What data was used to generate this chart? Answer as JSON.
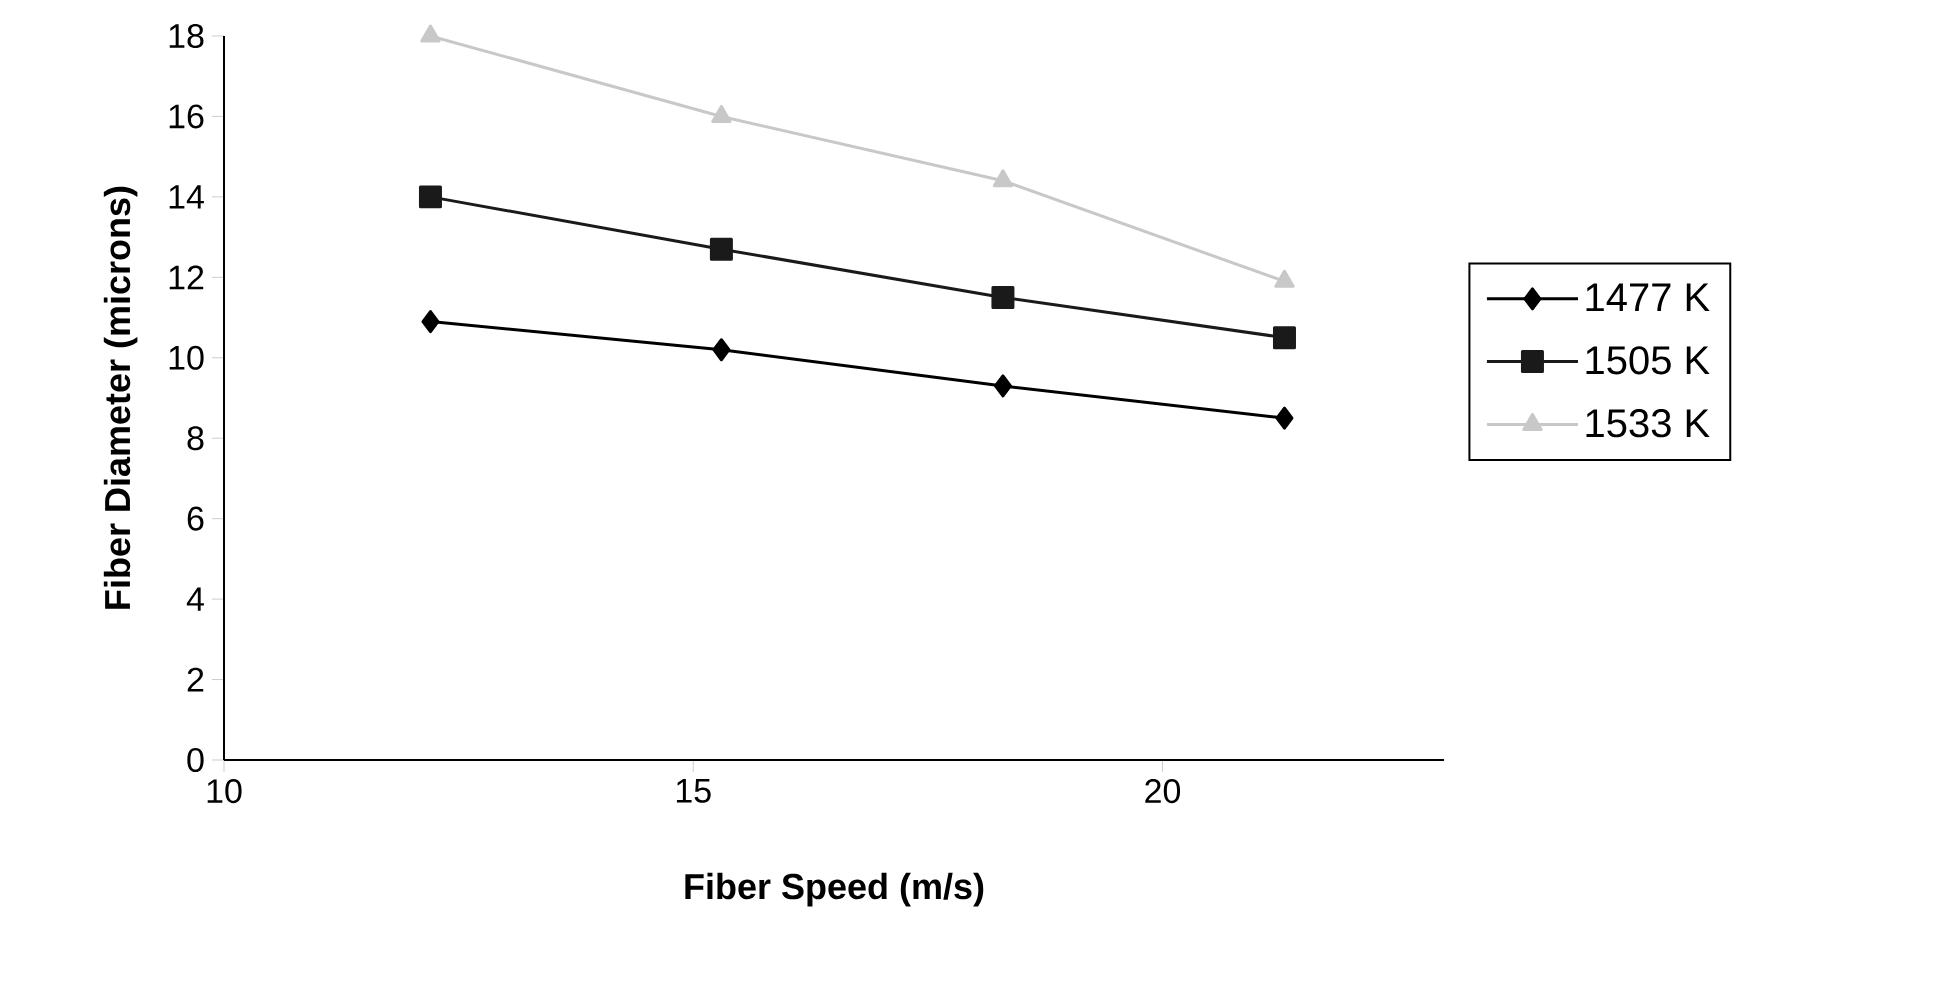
{
  "chart_data": {
    "type": "line",
    "xlabel": "Fiber Speed (m/s)",
    "ylabel": "Fiber Diameter (microns)",
    "x": [
      12.2,
      15.3,
      18.3,
      21.3
    ],
    "series": [
      {
        "name": "1477 K",
        "color": "#000000",
        "marker": "diamond",
        "values": [
          10.9,
          10.2,
          9.3,
          8.5
        ]
      },
      {
        "name": "1505 K",
        "color": "#1a1a1a",
        "marker": "square",
        "values": [
          14.0,
          12.7,
          11.5,
          10.5
        ]
      },
      {
        "name": "1533 K",
        "color": "#c8c8c8",
        "marker": "triangle",
        "values": [
          18.0,
          16.0,
          14.4,
          11.9
        ]
      }
    ],
    "xlim": [
      10,
      23
    ],
    "xticks": [
      10,
      15,
      20
    ],
    "ylim": [
      0,
      18
    ],
    "yticks": [
      0,
      2,
      4,
      6,
      8,
      10,
      12,
      14,
      16,
      18
    ],
    "legend": "right"
  }
}
